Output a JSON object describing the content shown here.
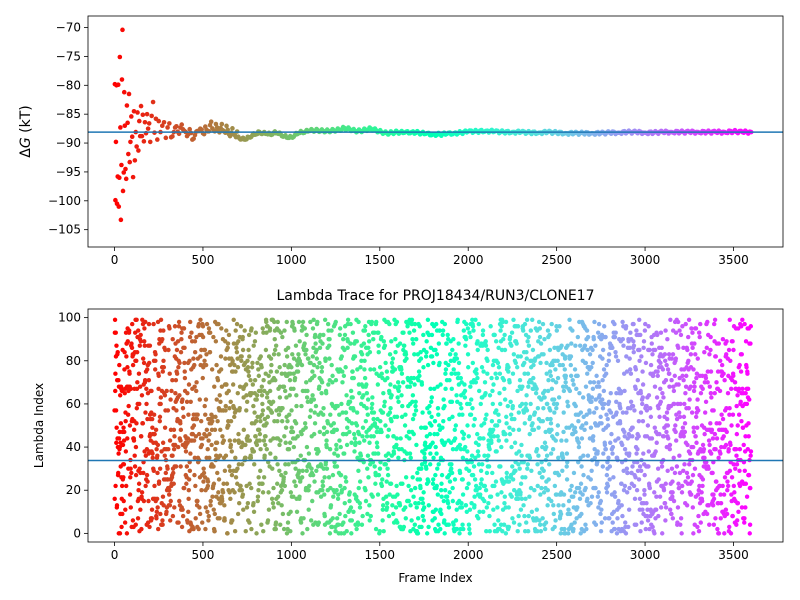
{
  "chart_data": [
    {
      "type": "scatter",
      "title": "",
      "xlabel": "",
      "ylabel_prefix": "Δ",
      "ylabel_symbol": "G",
      "ylabel_suffix": " (kT)",
      "xlim": [
        -150,
        3780
      ],
      "ylim": [
        -108,
        -68
      ],
      "xticks": [
        0,
        500,
        1000,
        1500,
        2000,
        2500,
        3000,
        3500
      ],
      "yticks": [
        -105,
        -100,
        -95,
        -90,
        -85,
        -80,
        -75,
        -70
      ],
      "hline": -88.1,
      "hline_color": "#1f77b4",
      "colormap": "rainbow",
      "n_frames": 3600,
      "series": [
        {
          "points": [
            [
              2,
              -79.8
            ],
            [
              5,
              -99.9
            ],
            [
              8,
              -89.8
            ],
            [
              11,
              -80.0
            ],
            [
              14,
              -100.5
            ],
            [
              18,
              -95.8
            ],
            [
              21,
              -79.9
            ],
            [
              24,
              -101.0
            ],
            [
              27,
              -96.0
            ],
            [
              30,
              -75.1
            ],
            [
              33,
              -87.3
            ],
            [
              36,
              -103.3
            ],
            [
              39,
              -93.8
            ],
            [
              42,
              -79.0
            ],
            [
              45,
              -70.4
            ],
            [
              48,
              -98.3
            ],
            [
              52,
              -95.1
            ],
            [
              55,
              -81.2
            ],
            [
              58,
              -87.0
            ],
            [
              62,
              -94.5
            ],
            [
              66,
              -96.2
            ],
            [
              70,
              -83.5
            ],
            [
              74,
              -86.5
            ],
            [
              78,
              -91.9
            ],
            [
              82,
              -81.5
            ],
            [
              86,
              -93.3
            ],
            [
              90,
              -89.8
            ],
            [
              95,
              -85.4
            ],
            [
              100,
              -88.9
            ],
            [
              105,
              -95.9
            ],
            [
              110,
              -84.5
            ],
            [
              115,
              -93.0
            ],
            [
              120,
              -88.1
            ],
            [
              125,
              -90.6
            ],
            [
              130,
              -84.7
            ],
            [
              135,
              -91.3
            ],
            [
              140,
              -86.2
            ],
            [
              145,
              -88.8
            ],
            [
              150,
              -83.6
            ],
            [
              155,
              -88.8
            ],
            [
              160,
              -85.1
            ],
            [
              166,
              -89.7
            ],
            [
              172,
              -86.4
            ],
            [
              178,
              -88.3
            ],
            [
              184,
              -85.0
            ],
            [
              190,
              -87.5
            ],
            [
              196,
              -86.6
            ],
            [
              202,
              -89.8
            ],
            [
              210,
              -85.3
            ],
            [
              218,
              -82.9
            ],
            [
              226,
              -88.2
            ],
            [
              234,
              -85.8
            ],
            [
              242,
              -89.4
            ],
            [
              250,
              -86.2
            ],
            [
              260,
              -88.1
            ],
            [
              270,
              -87.0
            ],
            [
              280,
              -86.4
            ],
            [
              290,
              -89.1
            ],
            [
              300,
              -87.3
            ],
            [
              310,
              -86.6
            ],
            [
              320,
              -89.0
            ],
            [
              335,
              -88.1
            ],
            [
              350,
              -87.1
            ],
            [
              365,
              -88.4
            ],
            [
              380,
              -86.8
            ],
            [
              395,
              -87.9
            ],
            [
              410,
              -88.8
            ],
            [
              425,
              -87.6
            ],
            [
              440,
              -89.4
            ],
            [
              455,
              -88.6
            ],
            [
              470,
              -87.9
            ],
            [
              485,
              -87.5
            ],
            [
              500,
              -88.3
            ],
            [
              520,
              -87.7
            ],
            [
              540,
              -86.9
            ],
            [
              560,
              -87.8
            ],
            [
              580,
              -87.3
            ],
            [
              600,
              -87.4
            ],
            [
              620,
              -88.0
            ],
            [
              640,
              -87.7
            ],
            [
              660,
              -88.2
            ],
            [
              680,
              -88.6
            ],
            [
              700,
              -88.9
            ],
            [
              720,
              -89.3
            ],
            [
              740,
              -89.4
            ],
            [
              760,
              -89.0
            ],
            [
              780,
              -88.6
            ],
            [
              800,
              -88.5
            ],
            [
              820,
              -88.1
            ],
            [
              840,
              -88.3
            ],
            [
              860,
              -88.4
            ],
            [
              880,
              -88.5
            ],
            [
              900,
              -88.2
            ],
            [
              920,
              -88.3
            ],
            [
              940,
              -88.5
            ],
            [
              960,
              -88.8
            ],
            [
              980,
              -89.1
            ],
            [
              1000,
              -89.0
            ],
            [
              1020,
              -88.6
            ],
            [
              1040,
              -88.3
            ],
            [
              1060,
              -88.1
            ],
            [
              1080,
              -88.0
            ],
            [
              1100,
              -87.9
            ],
            [
              1120,
              -87.8
            ],
            [
              1150,
              -87.8
            ],
            [
              1180,
              -87.9
            ],
            [
              1210,
              -87.9
            ],
            [
              1240,
              -87.8
            ],
            [
              1270,
              -87.7
            ],
            [
              1300,
              -87.4
            ],
            [
              1330,
              -87.6
            ],
            [
              1360,
              -87.9
            ],
            [
              1390,
              -87.9
            ],
            [
              1420,
              -87.7
            ],
            [
              1450,
              -87.5
            ],
            [
              1480,
              -87.8
            ],
            [
              1510,
              -88.1
            ],
            [
              1540,
              -88.3
            ],
            [
              1570,
              -88.2
            ],
            [
              1600,
              -88.1
            ],
            [
              1640,
              -88.2
            ],
            [
              1680,
              -88.1
            ],
            [
              1720,
              -88.2
            ],
            [
              1760,
              -88.4
            ],
            [
              1800,
              -88.5
            ],
            [
              1840,
              -88.5
            ],
            [
              1880,
              -88.4
            ],
            [
              1920,
              -88.3
            ],
            [
              1960,
              -88.2
            ],
            [
              2000,
              -88.0
            ],
            [
              2050,
              -88.0
            ],
            [
              2100,
              -87.9
            ],
            [
              2150,
              -88.0
            ],
            [
              2200,
              -88.1
            ],
            [
              2250,
              -88.1
            ],
            [
              2300,
              -88.1
            ],
            [
              2350,
              -88.2
            ],
            [
              2400,
              -88.2
            ],
            [
              2450,
              -88.1
            ],
            [
              2500,
              -88.2
            ],
            [
              2550,
              -88.3
            ],
            [
              2600,
              -88.3
            ],
            [
              2650,
              -88.3
            ],
            [
              2700,
              -88.3
            ],
            [
              2750,
              -88.3
            ],
            [
              2800,
              -88.2
            ],
            [
              2850,
              -88.2
            ],
            [
              2900,
              -88.1
            ],
            [
              2950,
              -88.1
            ],
            [
              3000,
              -88.2
            ],
            [
              3050,
              -88.2
            ],
            [
              3100,
              -88.1
            ],
            [
              3150,
              -88.1
            ],
            [
              3200,
              -88.1
            ],
            [
              3250,
              -88.1
            ],
            [
              3300,
              -88.1
            ],
            [
              3350,
              -88.1
            ],
            [
              3400,
              -88.1
            ],
            [
              3450,
              -88.1
            ],
            [
              3500,
              -88.0
            ],
            [
              3550,
              -88.1
            ],
            [
              3600,
              -88.1
            ]
          ]
        }
      ]
    },
    {
      "type": "scatter",
      "title": "Lambda Trace for PROJ18434/RUN3/CLONE17",
      "xlabel": "Frame Index",
      "ylabel": "Lambda Index",
      "xlim": [
        -150,
        3780
      ],
      "ylim": [
        -4,
        104
      ],
      "xticks": [
        0,
        500,
        1000,
        1500,
        2000,
        2500,
        3000,
        3500
      ],
      "yticks": [
        0,
        20,
        40,
        60,
        80,
        100
      ],
      "hline": 33.8,
      "hline_color": "#1f77b4",
      "colormap": "rainbow",
      "n_frames": 3600,
      "n_lambda_states": 100,
      "lambda_range": [
        0,
        99
      ],
      "series": [
        {
          "distribution": "each of the 3600 frames sampled once; lambda index approximately uniform over 0–99, colored by frame index"
        }
      ]
    }
  ]
}
